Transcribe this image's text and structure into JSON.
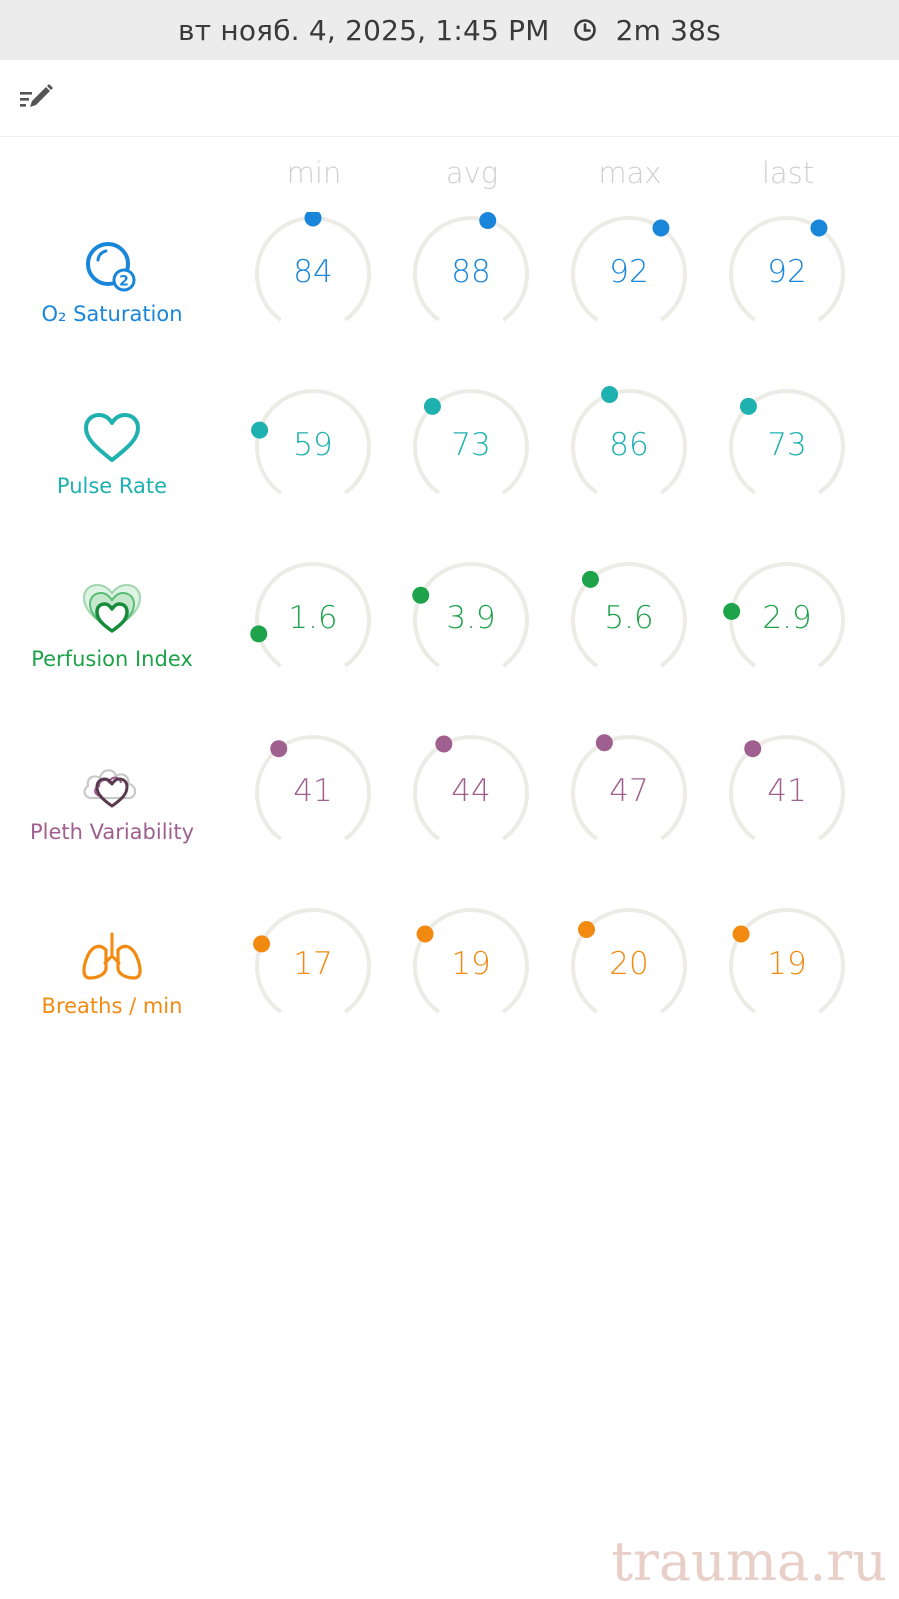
{
  "status_bar": {
    "datetime": "вт нояб. 4, 2025, 1:45 PM",
    "duration": "2m 38s",
    "icon": "clock-icon"
  },
  "toolbar": {
    "edit_icon": "edit-list-icon"
  },
  "columns": [
    "min",
    "avg",
    "max",
    "last"
  ],
  "metrics": [
    {
      "name": "O₂ Saturation",
      "icon": "o2-bubble-icon",
      "color": "#1a86d9",
      "values": [
        "84",
        "88",
        "92",
        "92"
      ],
      "levels": [
        0.5,
        0.56,
        0.62,
        0.62
      ]
    },
    {
      "name": "Pulse Rate",
      "icon": "heart-outline-icon",
      "color": "#1fb0b0",
      "values": [
        "59",
        "73",
        "86",
        "73"
      ],
      "levels": [
        0.25,
        0.35,
        0.43,
        0.35
      ]
    },
    {
      "name": "Perfusion Index",
      "icon": "layered-hearts-icon",
      "color": "#1ea34a",
      "values": [
        "1.6",
        "3.9",
        "5.6",
        "2.9"
      ],
      "levels": [
        0.14,
        0.28,
        0.35,
        0.22
      ]
    },
    {
      "name": "Pleth Variability",
      "icon": "cloud-heart-icon",
      "color": "#a0608f",
      "values": [
        "41",
        "44",
        "47",
        "41"
      ],
      "levels": [
        0.37,
        0.4,
        0.41,
        0.37
      ]
    },
    {
      "name": "Breaths / min",
      "icon": "lungs-icon",
      "color": "#f28a12",
      "values": [
        "17",
        "19",
        "20",
        "19"
      ],
      "levels": [
        0.27,
        0.31,
        0.33,
        0.31
      ]
    }
  ],
  "watermark": "trauma.ru"
}
